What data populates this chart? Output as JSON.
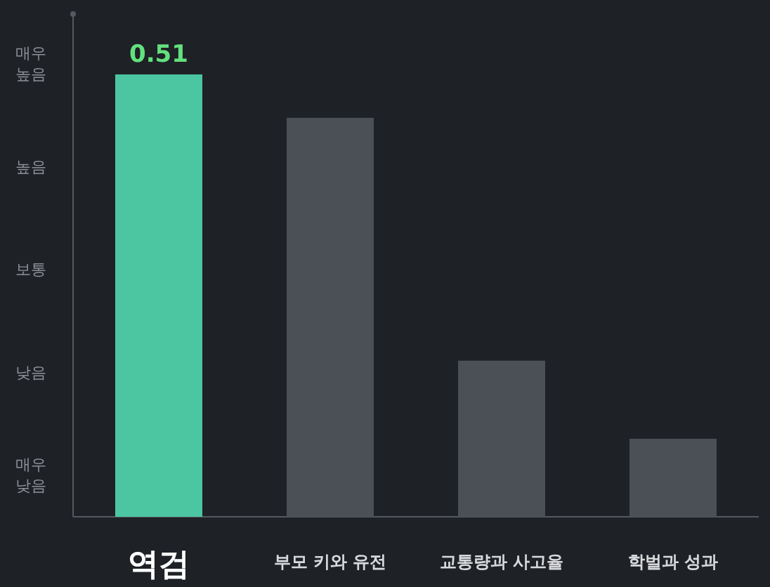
{
  "chart_data": {
    "type": "bar",
    "categories": [
      "역검",
      "부모 키와 유전",
      "교통량과 사고율",
      "학벌과 성과"
    ],
    "values": [
      0.51,
      0.46,
      0.18,
      0.09
    ],
    "colors": [
      "#4cc6a0",
      "#4b4f56",
      "#4b4f56",
      "#4b4f56"
    ],
    "value_labels": [
      "0.51",
      null,
      null,
      null
    ],
    "annotations": [
      "매우 높음",
      "높음",
      "보통",
      "낮음",
      "매우 낮음"
    ]
  }
}
